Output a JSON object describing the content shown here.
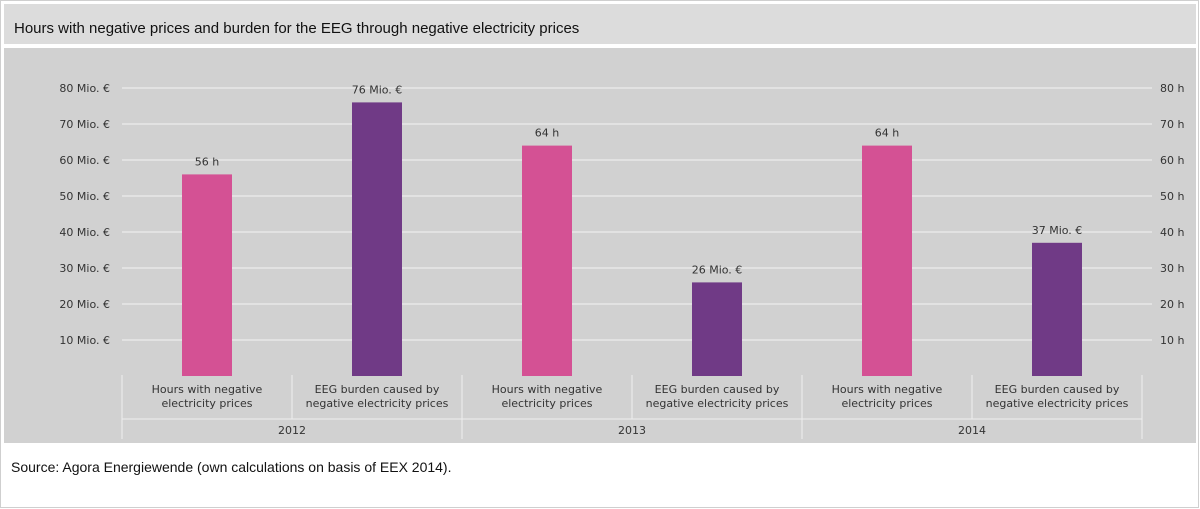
{
  "title": "Hours with negative prices and burden for the EEG through negative electricity prices",
  "source": "Source: Agora Energiewende (own calculations on basis of EEX 2014).",
  "colors": {
    "hours": "#d45194",
    "burden": "#703a86",
    "panel": "#d1d1d1",
    "title_bar": "#dcdcdc",
    "grid": "#f2f2f2"
  },
  "chart_data": {
    "type": "bar",
    "title": "Hours with negative prices and burden for the EEG through negative electricity prices",
    "left_axis": {
      "ticks": [
        10,
        20,
        30,
        40,
        50,
        60,
        70,
        80
      ],
      "tick_labels": [
        "10 Mio. €",
        "20 Mio. €",
        "30 Mio. €",
        "40 Mio. €",
        "50 Mio. €",
        "60 Mio. €",
        "70 Mio. €",
        "80 Mio. €"
      ],
      "ylim": [
        0,
        80
      ]
    },
    "right_axis": {
      "ticks": [
        10,
        20,
        30,
        40,
        50,
        60,
        70,
        80
      ],
      "tick_labels": [
        "10 h",
        "20 h",
        "30 h",
        "40 h",
        "50 h",
        "60 h",
        "70 h",
        "80 h"
      ],
      "ylim": [
        0,
        80
      ]
    },
    "grid": true,
    "groups": [
      "2012",
      "2013",
      "2014"
    ],
    "categories": [
      "Hours with negative electricity prices",
      "EEG burden caused by negative electricity prices",
      "Hours with negative electricity prices",
      "EEG burden caused by negative electricity prices",
      "Hours with negative electricity prices",
      "EEG burden caused by negative electricity prices"
    ],
    "category_lines": [
      [
        "Hours with negative",
        "electricity prices"
      ],
      [
        "EEG burden caused by",
        "negative electricity prices"
      ],
      [
        "Hours with negative",
        "electricity prices"
      ],
      [
        "EEG burden caused by",
        "negative electricity prices"
      ],
      [
        "Hours with negative",
        "electricity prices"
      ],
      [
        "EEG burden caused by",
        "negative electricity prices"
      ]
    ],
    "values": [
      56,
      76,
      64,
      26,
      64,
      37
    ],
    "kinds": [
      "hours",
      "burden",
      "hours",
      "burden",
      "hours",
      "burden"
    ],
    "data_labels": [
      "56 h",
      "76 Mio. €",
      "64 h",
      "26 Mio. €",
      "64 h",
      "37 Mio. €"
    ]
  }
}
